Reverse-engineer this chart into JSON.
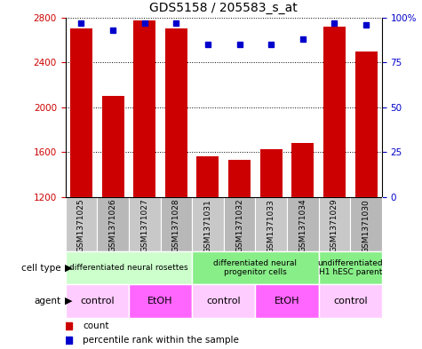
{
  "title": "GDS5158 / 205583_s_at",
  "samples": [
    "GSM1371025",
    "GSM1371026",
    "GSM1371027",
    "GSM1371028",
    "GSM1371031",
    "GSM1371032",
    "GSM1371033",
    "GSM1371034",
    "GSM1371029",
    "GSM1371030"
  ],
  "counts": [
    2700,
    2105,
    2775,
    2700,
    1565,
    1530,
    1625,
    1680,
    2720,
    2500
  ],
  "percentiles": [
    97,
    93,
    97,
    97,
    85,
    85,
    85,
    88,
    97,
    96
  ],
  "ylim_left": [
    1200,
    2800
  ],
  "ylim_right": [
    0,
    100
  ],
  "yticks_left": [
    1200,
    1600,
    2000,
    2400,
    2800
  ],
  "yticks_right": [
    0,
    25,
    50,
    75,
    100
  ],
  "bar_color": "#cc0000",
  "dot_color": "#0000cc",
  "cell_type_groups": [
    {
      "label": "differentiated neural rosettes",
      "start": 0,
      "end": 4,
      "color": "#ccffcc"
    },
    {
      "label": "differentiated neural\nprogenitor cells",
      "start": 4,
      "end": 8,
      "color": "#88ee88"
    },
    {
      "label": "undifferentiated\nH1 hESC parent",
      "start": 8,
      "end": 10,
      "color": "#88ee88"
    }
  ],
  "agent_groups": [
    {
      "label": "control",
      "start": 0,
      "end": 2,
      "color": "#ffccff"
    },
    {
      "label": "EtOH",
      "start": 2,
      "end": 4,
      "color": "#ff66ff"
    },
    {
      "label": "control",
      "start": 4,
      "end": 6,
      "color": "#ffccff"
    },
    {
      "label": "EtOH",
      "start": 6,
      "end": 8,
      "color": "#ff66ff"
    },
    {
      "label": "control",
      "start": 8,
      "end": 10,
      "color": "#ffccff"
    }
  ],
  "legend_count_color": "#cc0000",
  "legend_dot_color": "#0000cc",
  "sample_bg_color": "#c8c8c8",
  "sample_bg_color2": "#b8b8b8",
  "tick_fontsize": 7.5
}
